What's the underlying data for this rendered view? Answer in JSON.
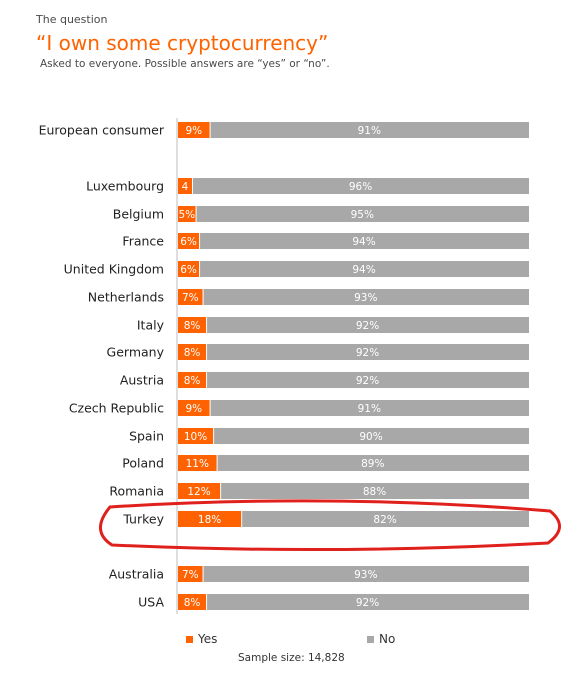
{
  "header": {
    "kicker": "The question",
    "title": "“I own some cryptocurrency”",
    "subtitle": "Asked to everyone. Possible answers are “yes” or “no”."
  },
  "colors": {
    "yes": "#ff6200",
    "no": "#a8a8a8",
    "highlight": "#e0201c"
  },
  "legend": {
    "yes_label": "Yes",
    "no_label": "No"
  },
  "footer": {
    "sample": "Sample size: 14,828"
  },
  "chart_data": {
    "type": "bar",
    "orientation": "horizontal",
    "stacked": true,
    "categories": [
      "European consumer",
      "Luxembourg",
      "Belgium",
      "France",
      "United Kingdom",
      "Netherlands",
      "Italy",
      "Germany",
      "Austria",
      "Czech Republic",
      "Spain",
      "Poland",
      "Romania",
      "Turkey",
      "Australia",
      "USA"
    ],
    "series": [
      {
        "name": "Yes",
        "values": [
          9,
          4,
          5,
          6,
          6,
          7,
          8,
          8,
          8,
          9,
          10,
          11,
          12,
          18,
          7,
          8
        ],
        "labels": [
          "9%",
          "4",
          "5%",
          "6%",
          "6%",
          "7%",
          "8%",
          "8%",
          "8%",
          "9%",
          "10%",
          "11%",
          "12%",
          "18%",
          "7%",
          "8%"
        ]
      },
      {
        "name": "No",
        "values": [
          91,
          96,
          95,
          94,
          94,
          93,
          92,
          92,
          92,
          91,
          90,
          89,
          88,
          82,
          93,
          92
        ],
        "labels": [
          "91%",
          "96%",
          "95%",
          "94%",
          "94%",
          "93%",
          "92%",
          "92%",
          "92%",
          "91%",
          "90%",
          "89%",
          "88%",
          "82%",
          "93%",
          "92%"
        ]
      }
    ],
    "xlim": [
      0,
      100
    ],
    "highlighted_category": "Turkey",
    "legend_position": "bottom"
  }
}
